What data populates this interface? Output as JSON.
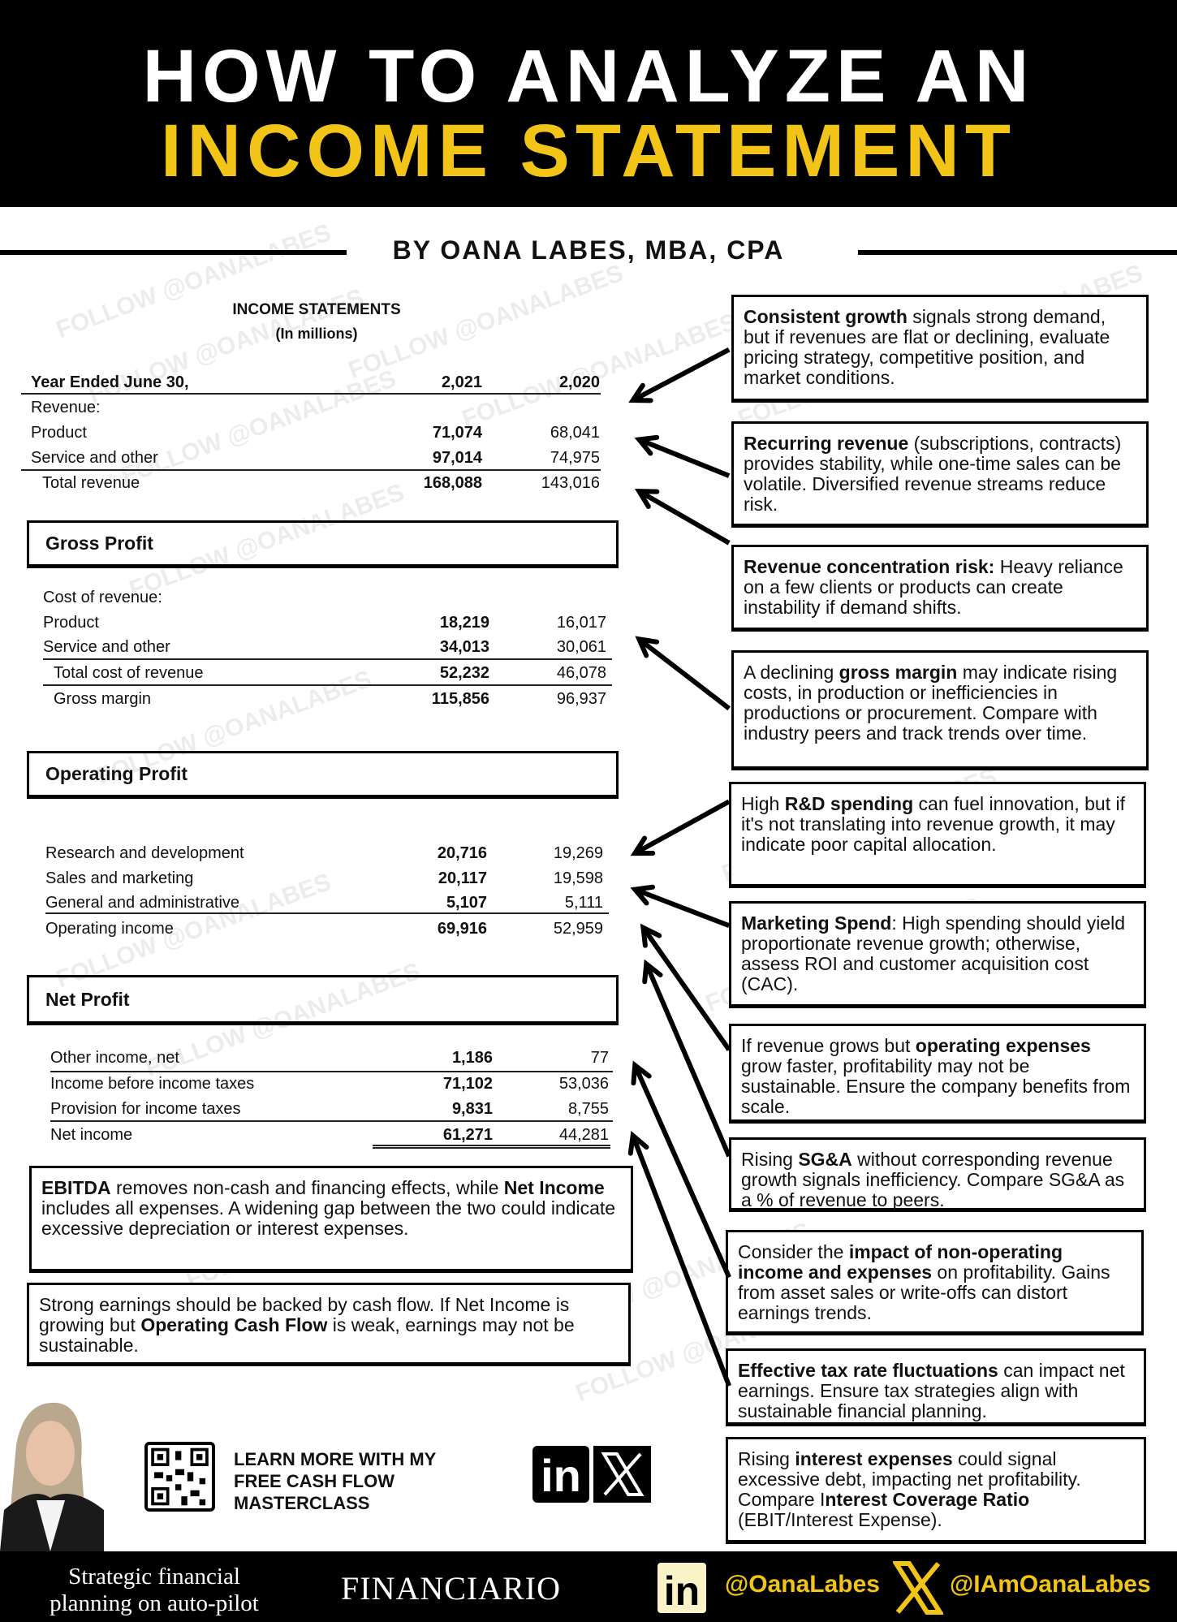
{
  "header": {
    "line1": "HOW TO ANALYZE AN",
    "line2": "INCOME STATEMENT",
    "byline": "BY OANA LABES, MBA, CPA",
    "title_color": "#f2c418"
  },
  "watermark": "FOLLOW @OANALABES",
  "statement": {
    "title": "INCOME STATEMENTS",
    "subtitle": "(In millions)",
    "header_row": {
      "label": "Year Ended June 30,",
      "col1": "2,021",
      "col2": "2,020"
    },
    "revenue": [
      {
        "label": "Revenue:",
        "v1": "",
        "v2": ""
      },
      {
        "label": "Product",
        "v1": "71,074",
        "v2": "68,041"
      },
      {
        "label": "Service and other",
        "v1": "97,014",
        "v2": "74,975"
      },
      {
        "label": "Total revenue",
        "v1": "168,088",
        "v2": "143,016"
      }
    ],
    "gross_profit_title": "Gross Profit",
    "cost": [
      {
        "label": "Cost of revenue:",
        "v1": "",
        "v2": ""
      },
      {
        "label": "Product",
        "v1": "18,219",
        "v2": "16,017"
      },
      {
        "label": "Service and other",
        "v1": "34,013",
        "v2": "30,061"
      },
      {
        "label": "Total cost of revenue",
        "v1": "52,232",
        "v2": "46,078"
      },
      {
        "label": "Gross margin",
        "v1": "115,856",
        "v2": "96,937"
      }
    ],
    "operating_profit_title": "Operating Profit",
    "opex": [
      {
        "label": "Research and development",
        "v1": "20,716",
        "v2": "19,269"
      },
      {
        "label": "Sales and marketing",
        "v1": "20,117",
        "v2": "19,598"
      },
      {
        "label": "General and administrative",
        "v1": "5,107",
        "v2": "5,111"
      },
      {
        "label": "Operating income",
        "v1": "69,916",
        "v2": "52,959"
      }
    ],
    "net_profit_title": "Net Profit",
    "net": [
      {
        "label": "Other income, net",
        "v1": "1,186",
        "v2": "77"
      },
      {
        "label": "Income before income taxes",
        "v1": "71,102",
        "v2": "53,036"
      },
      {
        "label": "Provision for income taxes",
        "v1": "9,831",
        "v2": "8,755"
      },
      {
        "label": "Net income",
        "v1": "61,271",
        "v2": "44,281"
      }
    ]
  },
  "left_notes": [
    {
      "parts": [
        {
          "t": "EBITDA",
          "b": true
        },
        {
          "t": " removes non-cash and financing effects, while "
        },
        {
          "t": "Net Income",
          "b": true
        },
        {
          "t": " includes all expenses. A widening gap between the two could indicate excessive depreciation or interest expenses."
        }
      ]
    },
    {
      "parts": [
        {
          "t": "Strong earnings should be backed by cash flow. If Net Income is growing but "
        },
        {
          "t": "Operating Cash Flow",
          "b": true
        },
        {
          "t": " is weak, earnings may not be sustainable."
        }
      ]
    }
  ],
  "right_notes": [
    {
      "parts": [
        {
          "t": "Consistent growth",
          "b": true
        },
        {
          "t": " signals strong demand, but if revenues are flat or declining, evaluate pricing strategy, competitive position, and market conditions."
        }
      ]
    },
    {
      "parts": [
        {
          "t": "Recurring revenue",
          "b": true
        },
        {
          "t": " (subscriptions, contracts) provides stability, while one-time sales can be volatile. Diversified revenue streams reduce risk."
        }
      ]
    },
    {
      "parts": [
        {
          "t": "Revenue concentration risk:",
          "b": true
        },
        {
          "t": " Heavy reliance on a few clients or products can create instability if demand shifts."
        }
      ]
    },
    {
      "parts": [
        {
          "t": "A declining "
        },
        {
          "t": "gross margin",
          "b": true
        },
        {
          "t": " may indicate rising costs,  in production or inefficiencies in productions or procurement. Compare with industry peers and track trends over time."
        }
      ]
    },
    {
      "parts": [
        {
          "t": "High "
        },
        {
          "t": "R&D spending",
          "b": true
        },
        {
          "t": " can fuel innovation, but if it's not translating into revenue growth, it may indicate poor capital allocation."
        }
      ]
    },
    {
      "parts": [
        {
          "t": "Marketing Spend",
          "b": true
        },
        {
          "t": ": High spending should yield proportionate revenue growth; otherwise, assess ROI and customer acquisition cost (CAC)."
        }
      ]
    },
    {
      "parts": [
        {
          "t": "If revenue grows but "
        },
        {
          "t": "operating expenses",
          "b": true
        },
        {
          "t": " grow faster, profitability may not be sustainable. Ensure the company benefits from scale."
        }
      ]
    },
    {
      "parts": [
        {
          "t": "Rising "
        },
        {
          "t": "SG&A",
          "b": true
        },
        {
          "t": " without corresponding revenue growth signals inefficiency. Compare SG&A as a % of revenue to peers."
        }
      ]
    },
    {
      "parts": [
        {
          "t": "Consider the "
        },
        {
          "t": "impact of non-operating income and expenses",
          "b": true
        },
        {
          "t": " on profitability. Gains from asset sales or write-offs can distort earnings trends."
        }
      ]
    },
    {
      "parts": [
        {
          "t": "Effective tax rate fluctuations",
          "b": true
        },
        {
          "t": " can impact net earnings. Ensure tax strategies align with sustainable financial planning."
        }
      ]
    },
    {
      "parts": [
        {
          "t": "Rising "
        },
        {
          "t": "interest expenses",
          "b": true
        },
        {
          "t": " could signal excessive debt, impacting net profitability. Compare I"
        },
        {
          "t": "nterest Coverage Ratio",
          "b": true
        },
        {
          "t": " (EBIT/Interest Expense)."
        }
      ]
    }
  ],
  "promo": {
    "lines": [
      "LEARN MORE WITH MY",
      "FREE CASH FLOW",
      "MASTERCLASS"
    ],
    "icons": [
      "qr-code-icon",
      "linkedin-icon",
      "x-icon"
    ]
  },
  "footer": {
    "tagline_1": "Strategic financial",
    "tagline_2": "planning on auto-pilot",
    "brand": "FINANCIARIO",
    "linkedin_handle": "@OanaLabes",
    "x_handle": "@IAmOanaLabes",
    "accent": "#f2c418"
  }
}
